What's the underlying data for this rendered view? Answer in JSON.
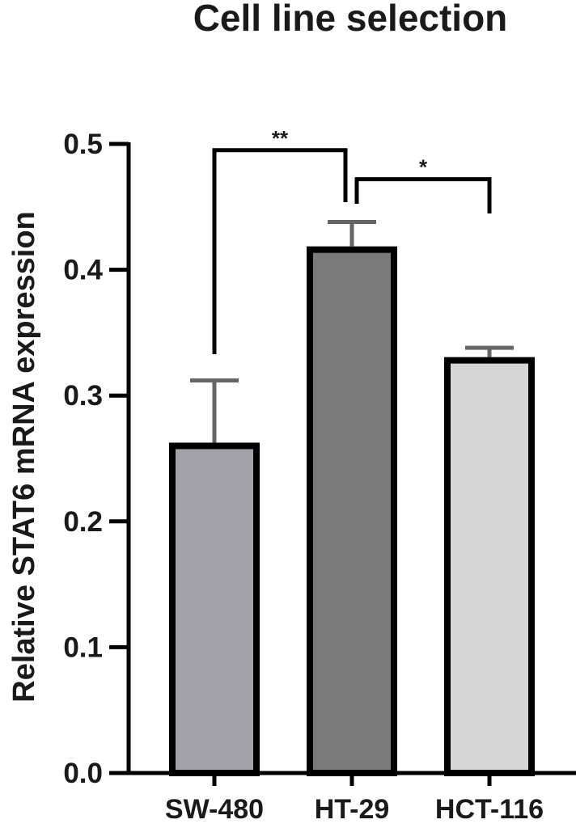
{
  "chart_data": {
    "type": "bar",
    "title": "Cell line selection",
    "xlabel": "",
    "ylabel": "Relative STAT6 mRNA expression",
    "categories": [
      "SW-480",
      "HT-29",
      "HCT-116"
    ],
    "values": [
      0.26,
      0.416,
      0.328
    ],
    "error": [
      0.052,
      0.022,
      0.01
    ],
    "ylim": [
      0,
      0.5
    ],
    "yticks": [
      0.0,
      0.1,
      0.2,
      0.3,
      0.4,
      0.5
    ],
    "ytick_labels": [
      "0.0",
      "0.1",
      "0.2",
      "0.3",
      "0.4",
      "0.5"
    ],
    "colors": [
      "#a2a2a8",
      "#7a7a7a",
      "#d6d6d6"
    ],
    "edge_color": "#000000",
    "error_color": "#666666",
    "grid": false,
    "significance": [
      {
        "from": "SW-480",
        "to": "HT-29",
        "label": "**",
        "line_y": 0.495
      },
      {
        "from": "HT-29",
        "to": "HCT-116",
        "label": "*",
        "line_y": 0.472
      }
    ]
  }
}
